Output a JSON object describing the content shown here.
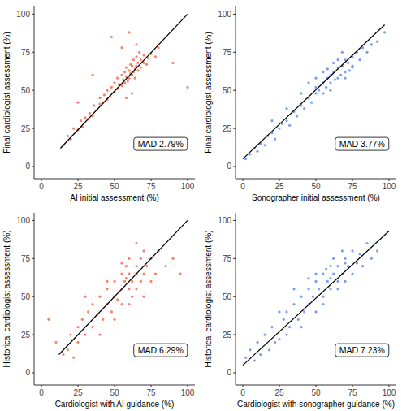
{
  "chart_data": [
    {
      "type": "scatter",
      "x_label": "AI initial assessment (%)",
      "y_label": "Final cardiologist assessment (%)",
      "xlim": [
        -5,
        105
      ],
      "ylim": [
        -8,
        105
      ],
      "xticks": [
        0,
        25,
        50,
        75,
        100
      ],
      "yticks": [
        0,
        25,
        50,
        75,
        100
      ],
      "annotations": [
        "MAD 2.79%"
      ],
      "series": [
        {
          "type": "scatter",
          "color": "#f05a3a",
          "marker": "circle",
          "x": [
            15,
            18,
            20,
            22,
            25,
            27,
            28,
            30,
            32,
            33,
            35,
            36,
            38,
            40,
            40,
            42,
            43,
            45,
            45,
            47,
            48,
            50,
            50,
            52,
            52,
            53,
            55,
            55,
            56,
            57,
            57,
            58,
            58,
            59,
            60,
            60,
            61,
            61,
            62,
            62,
            63,
            63,
            64,
            64,
            65,
            65,
            66,
            66,
            67,
            68,
            68,
            70,
            70,
            72,
            73,
            75,
            78,
            80,
            48,
            60,
            55,
            65,
            35,
            58,
            62,
            100,
            90,
            25
          ],
          "values": [
            14,
            20,
            18,
            25,
            24,
            30,
            26,
            32,
            31,
            35,
            33,
            40,
            37,
            41,
            45,
            42,
            47,
            44,
            50,
            46,
            52,
            49,
            55,
            51,
            58,
            54,
            53,
            60,
            57,
            55,
            62,
            59,
            65,
            56,
            58,
            63,
            61,
            67,
            60,
            66,
            62,
            70,
            64,
            58,
            66,
            72,
            63,
            68,
            75,
            65,
            70,
            68,
            73,
            67,
            71,
            74,
            72,
            78,
            85,
            88,
            78,
            80,
            60,
            45,
            48,
            52,
            68,
            42
          ]
        },
        {
          "type": "line",
          "color": "#000000",
          "line_style": "solid",
          "x": [
            13,
            100
          ],
          "values": [
            12,
            100
          ]
        }
      ]
    },
    {
      "type": "scatter",
      "x_label": "Sonographer initial assessment (%)",
      "y_label": "Final cardiologist assessment (%)",
      "xlim": [
        -5,
        105
      ],
      "ylim": [
        -8,
        105
      ],
      "xticks": [
        0,
        25,
        50,
        75,
        100
      ],
      "yticks": [
        0,
        25,
        50,
        75,
        100
      ],
      "annotations": [
        "MAD 3.77%"
      ],
      "series": [
        {
          "type": "scatter",
          "color": "#4f7fe8",
          "marker": "circle",
          "x": [
            2,
            5,
            8,
            10,
            12,
            15,
            17,
            20,
            22,
            25,
            27,
            30,
            32,
            35,
            37,
            40,
            42,
            45,
            47,
            50,
            50,
            52,
            55,
            55,
            57,
            58,
            60,
            60,
            62,
            63,
            65,
            65,
            67,
            68,
            70,
            70,
            72,
            73,
            75,
            75,
            78,
            80,
            82,
            85,
            88,
            92,
            97,
            45,
            55,
            60,
            65,
            70,
            40,
            30,
            50,
            62,
            68,
            75,
            58,
            20
          ],
          "values": [
            5,
            8,
            12,
            10,
            15,
            14,
            20,
            22,
            18,
            25,
            28,
            30,
            27,
            36,
            33,
            40,
            38,
            45,
            42,
            48,
            52,
            50,
            55,
            48,
            52,
            58,
            60,
            55,
            62,
            57,
            65,
            58,
            60,
            66,
            62,
            70,
            68,
            63,
            72,
            66,
            75,
            70,
            78,
            75,
            80,
            82,
            88,
            55,
            62,
            50,
            70,
            58,
            48,
            38,
            58,
            68,
            75,
            65,
            64,
            30
          ]
        },
        {
          "type": "line",
          "color": "#000000",
          "line_style": "solid",
          "x": [
            0,
            97
          ],
          "values": [
            5,
            93
          ]
        }
      ]
    },
    {
      "type": "scatter",
      "x_label": "Cardiologist with AI guidance (%)",
      "y_label": "Historical cardiologist assessment (%)",
      "xlim": [
        -5,
        105
      ],
      "ylim": [
        -8,
        105
      ],
      "xticks": [
        0,
        25,
        50,
        75,
        100
      ],
      "yticks": [
        0,
        25,
        50,
        75,
        100
      ],
      "annotations": [
        "MAD 6.29%"
      ],
      "series": [
        {
          "type": "scatter",
          "color": "#f05a3a",
          "marker": "circle",
          "x": [
            5,
            10,
            15,
            18,
            20,
            22,
            25,
            25,
            28,
            30,
            32,
            35,
            35,
            38,
            40,
            42,
            45,
            45,
            48,
            50,
            50,
            52,
            55,
            55,
            55,
            57,
            58,
            60,
            60,
            60,
            62,
            62,
            65,
            65,
            65,
            68,
            68,
            70,
            70,
            72,
            75,
            75,
            78,
            80,
            85,
            90,
            95,
            40,
            50,
            60,
            30,
            45,
            55,
            65,
            70,
            58
          ],
          "values": [
            35,
            20,
            12,
            15,
            25,
            10,
            20,
            30,
            35,
            25,
            40,
            30,
            45,
            38,
            50,
            35,
            45,
            55,
            40,
            50,
            60,
            48,
            55,
            65,
            45,
            60,
            70,
            55,
            65,
            75,
            60,
            50,
            65,
            70,
            55,
            75,
            60,
            65,
            80,
            70,
            75,
            60,
            65,
            80,
            70,
            75,
            65,
            25,
            35,
            45,
            50,
            60,
            72,
            85,
            50,
            62
          ]
        },
        {
          "type": "line",
          "color": "#000000",
          "line_style": "solid",
          "x": [
            12,
            100
          ],
          "values": [
            12,
            100
          ]
        }
      ]
    },
    {
      "type": "scatter",
      "x_label": "Cardiologist with sonographer guidance (%)",
      "y_label": "Historical cardiologist assessment (%)",
      "xlim": [
        -5,
        105
      ],
      "ylim": [
        -8,
        105
      ],
      "xticks": [
        0,
        25,
        50,
        75,
        100
      ],
      "yticks": [
        0,
        25,
        50,
        75,
        100
      ],
      "annotations": [
        "MAD 7.23%"
      ],
      "series": [
        {
          "type": "scatter",
          "color": "#4f7fe8",
          "marker": "circle",
          "x": [
            2,
            5,
            8,
            10,
            12,
            15,
            18,
            20,
            22,
            25,
            28,
            30,
            30,
            32,
            35,
            38,
            40,
            40,
            42,
            45,
            45,
            48,
            50,
            50,
            52,
            55,
            55,
            58,
            60,
            60,
            62,
            62,
            65,
            65,
            68,
            68,
            70,
            70,
            72,
            75,
            75,
            78,
            80,
            82,
            85,
            88,
            92,
            35,
            45,
            55,
            65,
            25,
            50,
            60,
            70,
            57
          ],
          "values": [
            10,
            15,
            8,
            20,
            12,
            25,
            15,
            30,
            20,
            22,
            35,
            25,
            40,
            30,
            45,
            35,
            30,
            50,
            40,
            45,
            55,
            50,
            40,
            60,
            55,
            50,
            65,
            60,
            55,
            70,
            65,
            75,
            60,
            70,
            65,
            80,
            60,
            75,
            70,
            65,
            80,
            72,
            78,
            70,
            85,
            75,
            80,
            55,
            62,
            45,
            55,
            40,
            65,
            62,
            72,
            68
          ]
        },
        {
          "type": "line",
          "color": "#000000",
          "line_style": "solid",
          "x": [
            0,
            100
          ],
          "values": [
            5,
            93
          ]
        }
      ]
    }
  ]
}
